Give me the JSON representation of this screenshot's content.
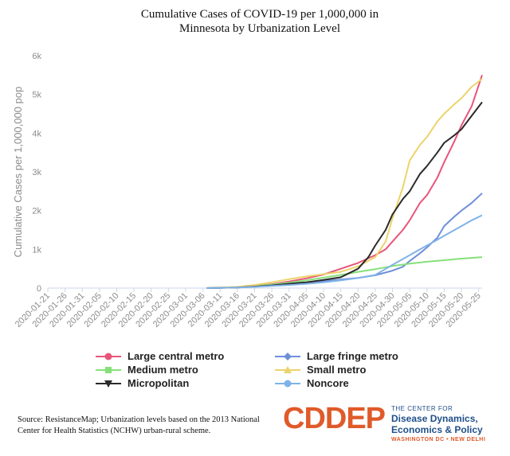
{
  "chart_data": {
    "type": "line",
    "title_lines": [
      "Cumulative Cases of COVID-19 per 1,000,000 in",
      "Minnesota by Urbanization Level"
    ],
    "ylabel": "Cumulative Cases per 1,000,000 pop",
    "ylim": [
      0,
      6000
    ],
    "yticks": [
      0,
      1000,
      2000,
      3000,
      4000,
      5000,
      6000
    ],
    "ytick_labels": [
      "0",
      "1k",
      "2k",
      "3k",
      "4k",
      "5k",
      "6k"
    ],
    "x_range": [
      0,
      126
    ],
    "x_tick_positions": [
      0,
      5,
      10,
      15,
      20,
      25,
      30,
      35,
      40,
      45,
      50,
      55,
      60,
      65,
      70,
      75,
      80,
      85,
      90,
      95,
      100,
      105,
      110,
      115,
      120,
      125
    ],
    "x_tick_labels": [
      "2020-01-21",
      "2020-01-26",
      "2020-01-31",
      "2020-02-05",
      "2020-02-10",
      "2020-02-15",
      "2020-02-20",
      "2020-02-25",
      "2020-03-01",
      "2020-03-06",
      "2020-03-11",
      "2020-03-16",
      "2020-03-21",
      "2020-03-26",
      "2020-03-31",
      "2020-04-05",
      "2020-04-10",
      "2020-04-15",
      "2020-04-20",
      "2020-04-25",
      "2020-04-30",
      "2020-05-05",
      "2020-05-10",
      "2020-05-15",
      "2020-05-20",
      "2020-05-25"
    ],
    "legend_position": "bottom",
    "grid": false,
    "series": [
      {
        "name": "Large central metro",
        "color": "#e8557a",
        "marker": "circle",
        "x": [
          46,
          55,
          60,
          65,
          70,
          75,
          80,
          85,
          90,
          95,
          98,
          100,
          103,
          105,
          108,
          110,
          113,
          115,
          118,
          120,
          123,
          126
        ],
        "y": [
          0,
          20,
          50,
          100,
          170,
          250,
          350,
          500,
          650,
          850,
          1000,
          1200,
          1500,
          1750,
          2200,
          2400,
          2850,
          3250,
          3800,
          4200,
          4700,
          5500
        ]
      },
      {
        "name": "Large fringe metro",
        "color": "#6f8fd8",
        "marker": "diamond",
        "x": [
          46,
          55,
          60,
          65,
          70,
          75,
          80,
          85,
          90,
          95,
          100,
          103,
          105,
          108,
          110,
          113,
          115,
          118,
          120,
          123,
          126
        ],
        "y": [
          0,
          15,
          40,
          70,
          100,
          140,
          180,
          220,
          260,
          330,
          450,
          550,
          700,
          900,
          1050,
          1300,
          1600,
          1850,
          2000,
          2200,
          2450
        ]
      },
      {
        "name": "Medium metro",
        "color": "#86e07a",
        "marker": "square",
        "x": [
          46,
          55,
          60,
          65,
          70,
          75,
          80,
          85,
          90,
          95,
          100,
          105,
          110,
          115,
          120,
          126
        ],
        "y": [
          0,
          20,
          50,
          90,
          140,
          200,
          270,
          340,
          420,
          490,
          570,
          630,
          680,
          720,
          760,
          800
        ]
      },
      {
        "name": "Small metro",
        "color": "#ecd36a",
        "marker": "triangle",
        "x": [
          46,
          55,
          60,
          65,
          70,
          75,
          80,
          85,
          90,
          95,
          98,
          100,
          103,
          105,
          108,
          110,
          113,
          115,
          118,
          120,
          123,
          126
        ],
        "y": [
          0,
          30,
          80,
          150,
          230,
          300,
          360,
          420,
          560,
          800,
          1200,
          1800,
          2600,
          3300,
          3700,
          3900,
          4300,
          4500,
          4750,
          4900,
          5200,
          5400
        ]
      },
      {
        "name": "Micropolitan",
        "color": "#2a2a2a",
        "marker": "triangle-down",
        "x": [
          46,
          55,
          60,
          65,
          70,
          75,
          80,
          85,
          90,
          93,
          95,
          98,
          100,
          103,
          105,
          108,
          110,
          113,
          115,
          118,
          120,
          123,
          126
        ],
        "y": [
          0,
          15,
          40,
          70,
          110,
          150,
          210,
          280,
          500,
          800,
          1100,
          1500,
          1900,
          2300,
          2500,
          2950,
          3150,
          3500,
          3750,
          3950,
          4100,
          4450,
          4800
        ]
      },
      {
        "name": "Noncore",
        "color": "#7fb2e8",
        "marker": "circle",
        "x": [
          46,
          55,
          60,
          65,
          70,
          75,
          80,
          85,
          90,
          95,
          100,
          103,
          105,
          108,
          110,
          113,
          115,
          118,
          120,
          123,
          126
        ],
        "y": [
          0,
          15,
          30,
          55,
          80,
          110,
          150,
          200,
          260,
          340,
          600,
          750,
          850,
          1000,
          1100,
          1250,
          1350,
          1500,
          1600,
          1750,
          1880
        ]
      }
    ]
  },
  "footer": {
    "source_text": "Source: ResistanceMap; Urbanization levels based on the 2013 National Center for Health Statistics (NCHW) urban-rural scheme.",
    "brand_logo": "CDDEP",
    "brand_small": "THE CENTER FOR",
    "brand_line1": "Disease Dynamics,",
    "brand_line2": "Economics & Policy",
    "brand_locations": "WASHINGTON DC • NEW DELHI",
    "brand_color": "#e05a2a",
    "brand_text_color": "#1f4f8a"
  }
}
